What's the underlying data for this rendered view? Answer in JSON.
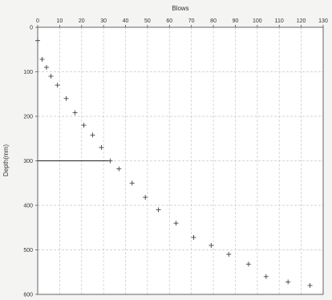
{
  "chart_data": {
    "type": "scatter",
    "title": "",
    "xlabel": "Blows",
    "ylabel": "Depth(mm)",
    "xlim": [
      0,
      130
    ],
    "ylim": [
      600,
      0
    ],
    "x_axis_position": "top",
    "y_inverted": true,
    "grid": true,
    "legend": "none",
    "x_ticks": [
      "0",
      "10",
      "20",
      "30",
      "40",
      "50",
      "60",
      "70",
      "80",
      "90",
      "100",
      "110",
      "120",
      "130"
    ],
    "y_ticks": [
      "0",
      "100",
      "200",
      "300",
      "400",
      "500",
      "600"
    ],
    "marker": "+",
    "colors": {
      "plot_bg": "#ffffff",
      "page_bg": "#f4f4f2",
      "grid": "#c8c8c8",
      "marker": "#444444",
      "axis": "#555555",
      "reference_line": "#222222"
    },
    "points": [
      {
        "x": 0,
        "y": 30
      },
      {
        "x": 2,
        "y": 72
      },
      {
        "x": 4,
        "y": 90
      },
      {
        "x": 6,
        "y": 110
      },
      {
        "x": 9,
        "y": 130
      },
      {
        "x": 13,
        "y": 160
      },
      {
        "x": 17,
        "y": 192
      },
      {
        "x": 21,
        "y": 220
      },
      {
        "x": 25,
        "y": 242
      },
      {
        "x": 29,
        "y": 270
      },
      {
        "x": 33,
        "y": 300
      },
      {
        "x": 37,
        "y": 318
      },
      {
        "x": 43,
        "y": 350
      },
      {
        "x": 49,
        "y": 382
      },
      {
        "x": 55,
        "y": 410
      },
      {
        "x": 63,
        "y": 440
      },
      {
        "x": 71,
        "y": 472
      },
      {
        "x": 79,
        "y": 490
      },
      {
        "x": 87,
        "y": 510
      },
      {
        "x": 96,
        "y": 532
      },
      {
        "x": 104,
        "y": 560
      },
      {
        "x": 114,
        "y": 572
      },
      {
        "x": 124,
        "y": 580
      }
    ],
    "reference_line": {
      "y": 300,
      "x_from": 0,
      "x_to": 33
    }
  }
}
